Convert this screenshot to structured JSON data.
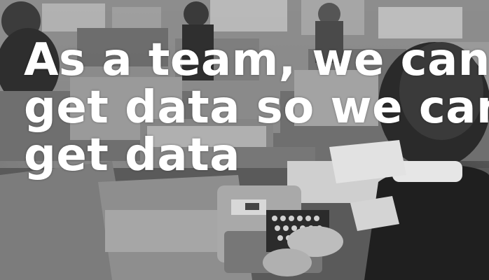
{
  "image": {
    "kind": "photo-with-caption",
    "tone": "black-and-white",
    "scene_icon": "office-typewriters-photo"
  },
  "caption": {
    "lines": [
      "As a team, we can",
      "get data so we can",
      "get data"
    ],
    "color": "#ffffff"
  }
}
